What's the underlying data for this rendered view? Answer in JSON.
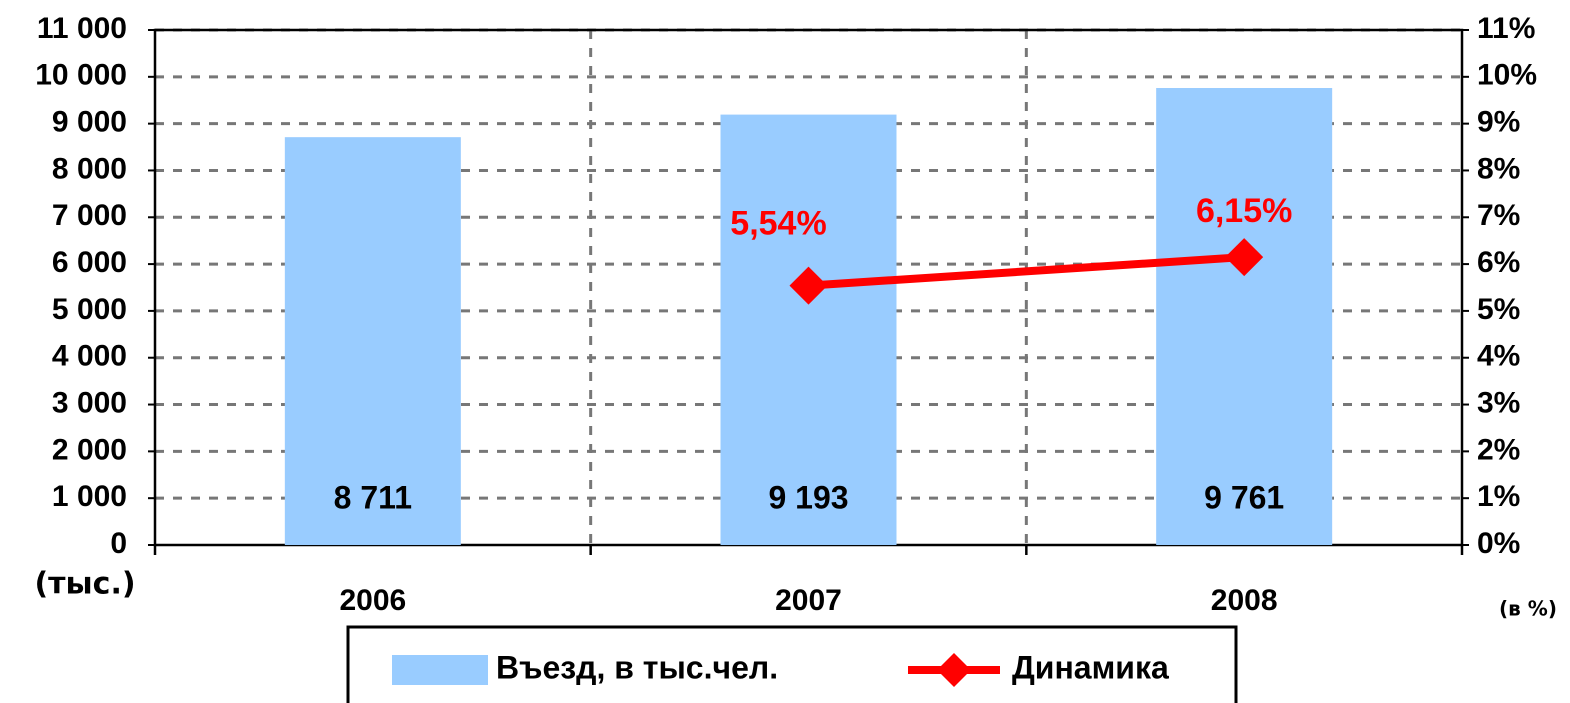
{
  "chart_data": {
    "type": "bar",
    "categories": [
      "2006",
      "2007",
      "2008"
    ],
    "y_label": "(тыс.)",
    "y2_label": "(в %)",
    "series": [
      {
        "name": "Въезд, в тыс.чел.",
        "type": "bar",
        "color": "#99ccff",
        "values": [
          8711,
          9193,
          9761
        ],
        "value_labels": [
          "8 711",
          "9 193",
          "9 761"
        ]
      },
      {
        "name": "Динамика",
        "type": "line",
        "axis": "y2",
        "color": "#ff0000",
        "values": [
          null,
          5.54,
          6.15
        ],
        "value_labels": [
          null,
          "5,54%",
          "6,15%"
        ]
      }
    ],
    "ylim": [
      0,
      11000
    ],
    "yticks": [
      0,
      {
        "value": 1000,
        "label": "1 000"
      },
      {
        "value": 2000,
        "label": "2 000"
      },
      {
        "value": 3000,
        "label": "3 000"
      },
      {
        "value": 4000,
        "label": "4 000"
      },
      {
        "value": 5000,
        "label": "5 000"
      },
      {
        "value": 6000,
        "label": "6 000"
      },
      {
        "value": 7000,
        "label": "7 000"
      },
      {
        "value": 8000,
        "label": "8 000"
      },
      {
        "value": 9000,
        "label": "9 000"
      },
      {
        "value": 10000,
        "label": "10 000"
      },
      {
        "value": 11000,
        "label": "11 000"
      }
    ],
    "y2lim": [
      0,
      11
    ],
    "y2ticks": [
      {
        "value": 0,
        "label": "0%"
      },
      {
        "value": 1,
        "label": "1%"
      },
      {
        "value": 2,
        "label": "2%"
      },
      {
        "value": 3,
        "label": "3%"
      },
      {
        "value": 4,
        "label": "4%"
      },
      {
        "value": 5,
        "label": "5%"
      },
      {
        "value": 6,
        "label": "6%"
      },
      {
        "value": 7,
        "label": "7%"
      },
      {
        "value": 8,
        "label": "8%"
      },
      {
        "value": 9,
        "label": "9%"
      },
      {
        "value": 10,
        "label": "10%"
      },
      {
        "value": 11,
        "label": "11%"
      }
    ],
    "grid": true,
    "legend": "bottom"
  }
}
